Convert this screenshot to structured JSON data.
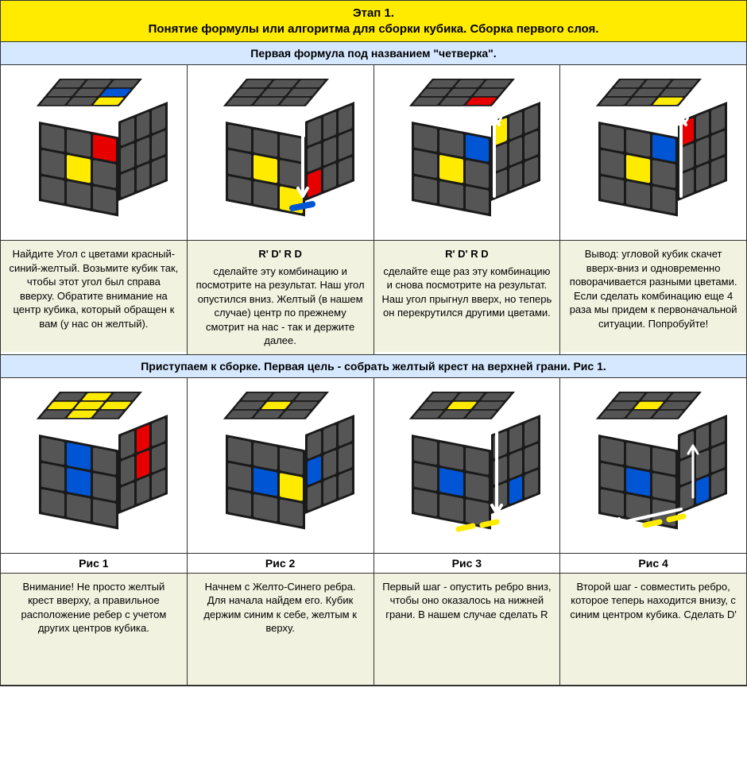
{
  "colors": {
    "title_bg": "#ffeb00",
    "sub_bg": "#d6e8ff",
    "text_bg": "#f2f2e0",
    "gray": "#555555",
    "black": "#1a1a1a",
    "yellow": "#ffeb00",
    "blue": "#0055d4",
    "red": "#e60000",
    "white_arrow": "#ffffff"
  },
  "title": {
    "line1": "Этап 1.",
    "line2": "Понятие формулы или алгоритма для сборки кубика. Сборка первого слоя."
  },
  "sub1": "Первая формула под названием \"четверка\".",
  "row1": [
    {
      "formula": "",
      "text": "Найдите Угол с цветами красный-синий-желтый. Возьмите кубик так, чтобы этот угол был справа вверху. Обратите внимание на центр кубика, который обращен к вам (у нас он желтый).",
      "top": [
        "g",
        "g",
        "g",
        "g",
        "g",
        "b",
        "g",
        "g",
        "y"
      ],
      "front": [
        "g",
        "g",
        "r",
        "g",
        "y",
        "g",
        "g",
        "g",
        "g"
      ],
      "right": [
        "g",
        "g",
        "g",
        "g",
        "g",
        "g",
        "g",
        "g",
        "g"
      ],
      "arrow": null
    },
    {
      "formula": "R' D' R D",
      "text": "сделайте эту комбинацию и посмотрите на результат. Наш угол опустился вниз. Желтый (в нашем случае) центр по прежнему смотрит на нас - так и держите далее.",
      "top": [
        "g",
        "g",
        "g",
        "g",
        "g",
        "g",
        "g",
        "g",
        "g"
      ],
      "front": [
        "g",
        "g",
        "g",
        "g",
        "y",
        "g",
        "g",
        "g",
        "y"
      ],
      "right": [
        "g",
        "g",
        "g",
        "g",
        "g",
        "g",
        "r",
        "g",
        "g"
      ],
      "arrow": "down"
    },
    {
      "formula": "R' D' R D",
      "text": "сделайте еще раз эту комбинацию и снова посмотрите на результат. Наш угол прыгнул вверх, но теперь он перекрутился другими цветами.",
      "top": [
        "g",
        "g",
        "g",
        "g",
        "g",
        "g",
        "g",
        "g",
        "r"
      ],
      "front": [
        "g",
        "g",
        "b",
        "g",
        "y",
        "g",
        "g",
        "g",
        "g"
      ],
      "right": [
        "y",
        "g",
        "g",
        "g",
        "g",
        "g",
        "g",
        "g",
        "g"
      ],
      "arrow": "up-curl"
    },
    {
      "formula": "",
      "text": "Вывод: угловой кубик скачет вверх-вниз и одновременно поворачивается разными цветами. Если сделать комбинацию еще 4 раза мы придем к первоначальной ситуации. Попробуйте!",
      "top": [
        "g",
        "g",
        "g",
        "g",
        "g",
        "g",
        "g",
        "g",
        "y"
      ],
      "front": [
        "g",
        "g",
        "b",
        "g",
        "y",
        "g",
        "g",
        "g",
        "g"
      ],
      "right": [
        "r",
        "g",
        "g",
        "g",
        "g",
        "g",
        "g",
        "g",
        "g"
      ],
      "arrow": "up-curl2"
    }
  ],
  "sub2": "Приступаем к сборке. Первая цель - собрать желтый крест на верхней грани. Рис 1.",
  "row2": [
    {
      "caption": "Рис 1",
      "text": "Внимание! Не просто желтый крест вверху, а правильное расположение ребер с учетом других центров кубика.",
      "top": [
        "g",
        "y",
        "g",
        "y",
        "y",
        "y",
        "g",
        "y",
        "g"
      ],
      "front": [
        "g",
        "b",
        "g",
        "g",
        "b",
        "g",
        "g",
        "g",
        "g"
      ],
      "right": [
        "g",
        "r",
        "g",
        "g",
        "r",
        "g",
        "g",
        "g",
        "g"
      ],
      "arrow": null
    },
    {
      "caption": "Рис 2",
      "text": "Начнем с Желто-Синего ребра. Для начала найдем его. Кубик держим синим к себе, желтым к верху.",
      "top": [
        "g",
        "g",
        "g",
        "g",
        "y",
        "g",
        "g",
        "g",
        "g"
      ],
      "front": [
        "g",
        "g",
        "g",
        "g",
        "b",
        "y",
        "g",
        "g",
        "g"
      ],
      "right": [
        "g",
        "g",
        "g",
        "b",
        "g",
        "g",
        "g",
        "g",
        "g"
      ],
      "arrow": null
    },
    {
      "caption": "Рис 3",
      "text": "Первый шаг - опустить ребро вниз, чтобы оно оказалось на нижней грани. В нашем случае сделать R",
      "top": [
        "g",
        "g",
        "g",
        "g",
        "y",
        "g",
        "g",
        "g",
        "g"
      ],
      "front": [
        "g",
        "g",
        "g",
        "g",
        "b",
        "g",
        "g",
        "g",
        "g"
      ],
      "right": [
        "g",
        "g",
        "g",
        "g",
        "g",
        "g",
        "g",
        "b",
        "g"
      ],
      "arrow": "R-down"
    },
    {
      "caption": "Рис 4",
      "text": "Второй шаг - совместить ребро, которое теперь находится внизу, с синим центром кубика. Сделать D'",
      "top": [
        "g",
        "g",
        "g",
        "g",
        "y",
        "g",
        "g",
        "g",
        "g"
      ],
      "front": [
        "g",
        "g",
        "g",
        "g",
        "b",
        "g",
        "g",
        "g",
        "g"
      ],
      "right": [
        "g",
        "g",
        "g",
        "g",
        "g",
        "g",
        "g",
        "b",
        "g"
      ],
      "arrow": "D-left"
    }
  ]
}
